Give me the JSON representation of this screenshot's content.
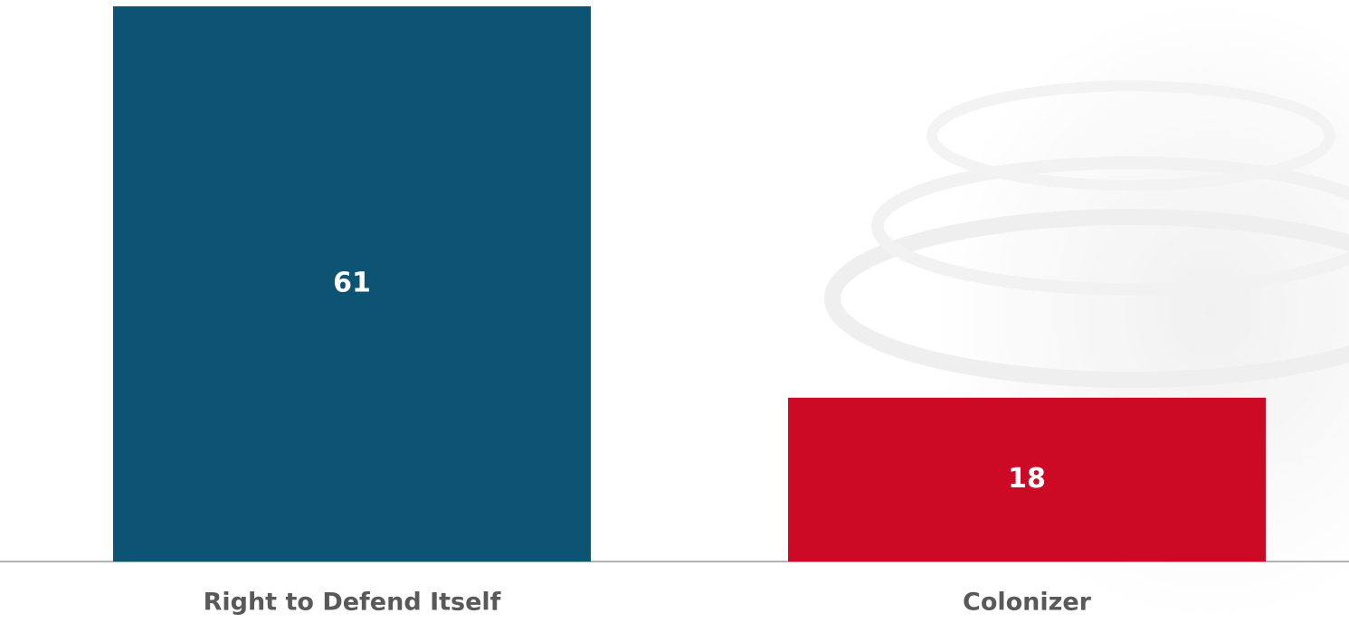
{
  "chart_data": {
    "type": "bar",
    "categories": [
      "Right to Defend Itself",
      "Colonizer"
    ],
    "values": [
      61,
      18
    ],
    "colors": [
      "#0d5474",
      "#cc0a26"
    ],
    "ylim": [
      0,
      61
    ]
  }
}
